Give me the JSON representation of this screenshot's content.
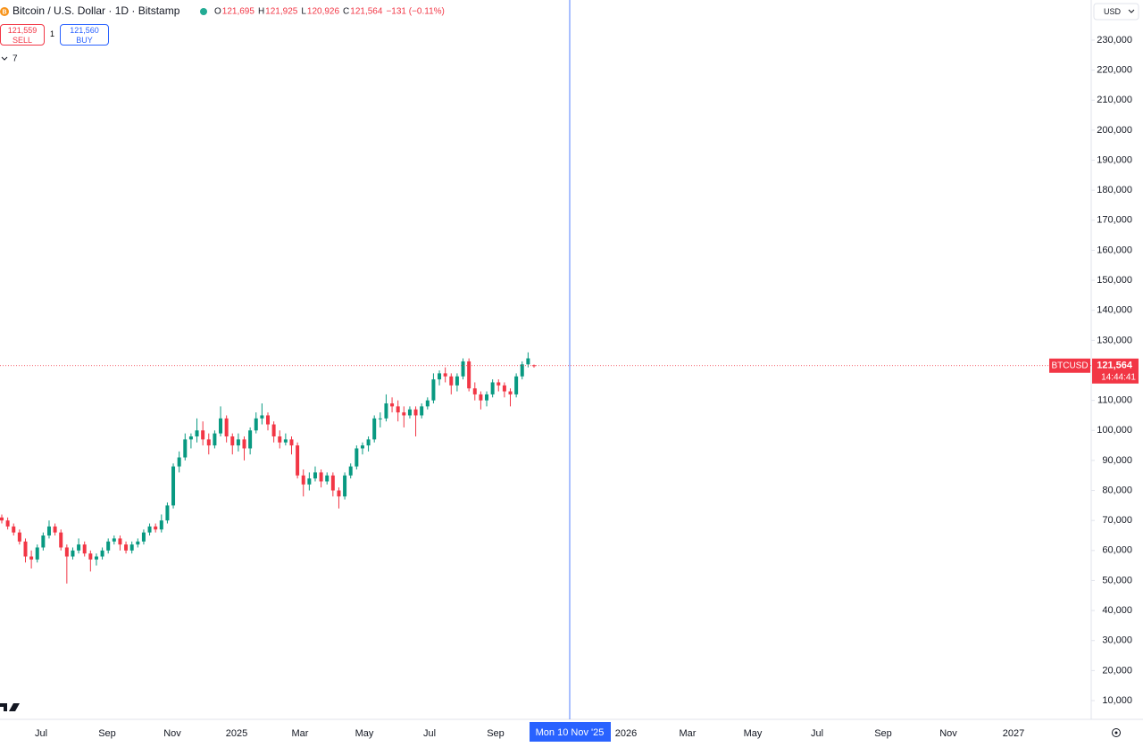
{
  "header": {
    "symbol": "Bitcoin / U.S. Dollar · 1D · Bitstamp",
    "ohlc": [
      {
        "key": "O",
        "value": "121,695"
      },
      {
        "key": "H",
        "value": "121,925"
      },
      {
        "key": "L",
        "value": "120,926"
      },
      {
        "key": "C",
        "value": "121,564"
      }
    ],
    "change": "−131 (−0.11%)"
  },
  "trade": {
    "sell_price": "121,559",
    "sell": "SELL",
    "spread": "1",
    "buy_price": "121,560",
    "buy": "BUY"
  },
  "indicators_toggle": "7",
  "currency": "USD",
  "crosshair_date": "Mon 10 Nov '25",
  "chart_data": {
    "type": "candlestick",
    "up_color": "#089981",
    "down_color": "#f23645",
    "ylim": [
      0,
      240000
    ],
    "yticks": [
      {
        "value": 10000,
        "label": "10,000"
      },
      {
        "value": 20000,
        "label": "20,000"
      },
      {
        "value": 30000,
        "label": "30,000"
      },
      {
        "value": 40000,
        "label": "40,000"
      },
      {
        "value": 50000,
        "label": "50,000"
      },
      {
        "value": 60000,
        "label": "60,000"
      },
      {
        "value": 70000,
        "label": "70,000"
      },
      {
        "value": 80000,
        "label": "80,000"
      },
      {
        "value": 90000,
        "label": "90,000"
      },
      {
        "value": 100000,
        "label": "100,000"
      },
      {
        "value": 110000,
        "label": "110,000"
      },
      {
        "value": 120000,
        "label": "120,000"
      },
      {
        "value": 130000,
        "label": "130,000"
      },
      {
        "value": 140000,
        "label": "140,000"
      },
      {
        "value": 150000,
        "label": "150,000"
      },
      {
        "value": 160000,
        "label": "160,000"
      },
      {
        "value": 170000,
        "label": "170,000"
      },
      {
        "value": 180000,
        "label": "180,000"
      },
      {
        "value": 190000,
        "label": "190,000"
      },
      {
        "value": 200000,
        "label": "200,000"
      },
      {
        "value": 210000,
        "label": "210,000"
      },
      {
        "value": 220000,
        "label": "220,000"
      },
      {
        "value": 230000,
        "label": "230,000"
      }
    ],
    "xticks": [
      "Jul",
      "Sep",
      "Nov",
      "2025",
      "Mar",
      "May",
      "Jul",
      "Sep",
      "2026",
      "Mar",
      "May",
      "Jul",
      "Sep",
      "Nov",
      "2027"
    ],
    "symbol_label": "BTCUSD",
    "last_price": 121564,
    "last_price_label": "121,564",
    "countdown": "14:44:41",
    "open": [
      71000,
      70000,
      68000,
      66000,
      63000,
      58000,
      57000,
      61000,
      65000,
      68000,
      66000,
      61000,
      58000,
      60000,
      62000,
      59000,
      57000,
      58000,
      60000,
      63000,
      64000,
      62000,
      60000,
      62000,
      63000,
      66000,
      68000,
      67000,
      70000,
      75000,
      88000,
      91000,
      97000,
      98000,
      100000,
      97000,
      95000,
      99000,
      104000,
      98000,
      95000,
      97000,
      94000,
      100000,
      104000,
      105000,
      102000,
      98000,
      96000,
      97000,
      95000,
      85000,
      82000,
      84000,
      86000,
      83000,
      85000,
      80000,
      78000,
      85000,
      88000,
      94000,
      95000,
      97000,
      104000,
      104000,
      109000,
      108000,
      106000,
      105000,
      107000,
      105000,
      108000,
      110000,
      117000,
      119000,
      118000,
      115000,
      118000,
      123000,
      114000,
      112000,
      110000,
      112000,
      116000,
      115000,
      113000,
      112000,
      118000,
      122000,
      121695
    ],
    "high": [
      72000,
      71000,
      69000,
      67000,
      64000,
      60000,
      62000,
      66000,
      70000,
      69000,
      67000,
      62000,
      61000,
      64000,
      63000,
      60000,
      59000,
      61000,
      64000,
      65000,
      65000,
      63000,
      63000,
      64000,
      67000,
      69000,
      69000,
      72000,
      76000,
      89000,
      93000,
      99000,
      99000,
      104000,
      103000,
      99000,
      100000,
      108000,
      105000,
      99000,
      99000,
      98000,
      101000,
      106000,
      109000,
      106000,
      103000,
      100000,
      99000,
      98000,
      96000,
      87000,
      86000,
      88000,
      87000,
      86000,
      86000,
      81000,
      86000,
      89000,
      95000,
      96000,
      98000,
      105000,
      106000,
      112000,
      111000,
      110000,
      108000,
      108000,
      108000,
      109000,
      111000,
      119000,
      120000,
      121000,
      119000,
      119000,
      124000,
      124000,
      116000,
      113000,
      113000,
      117000,
      117000,
      116000,
      114000,
      119000,
      123000,
      126000,
      121925
    ],
    "low": [
      69000,
      67000,
      65000,
      62000,
      56000,
      54000,
      56000,
      60000,
      64000,
      65000,
      60000,
      49000,
      57000,
      59000,
      58000,
      53000,
      55000,
      57000,
      59000,
      62000,
      60000,
      59000,
      59000,
      61000,
      62000,
      65000,
      66000,
      66000,
      69000,
      74000,
      86000,
      90000,
      94000,
      96000,
      95000,
      92000,
      94000,
      98000,
      96000,
      92000,
      93000,
      90000,
      92000,
      99000,
      102000,
      100000,
      96000,
      94000,
      95000,
      92000,
      84000,
      78000,
      80000,
      83000,
      81000,
      82000,
      78000,
      74000,
      77000,
      84000,
      87000,
      92000,
      93000,
      96000,
      101000,
      103000,
      106000,
      103000,
      101000,
      104000,
      98000,
      104000,
      107000,
      109000,
      115000,
      116000,
      112000,
      113000,
      117000,
      113000,
      110000,
      107000,
      108000,
      111000,
      113000,
      111000,
      108000,
      111000,
      117000,
      121000,
      120926
    ],
    "close": [
      70000,
      68000,
      66000,
      63000,
      58000,
      57000,
      61000,
      65000,
      68000,
      66000,
      61000,
      58000,
      60000,
      62000,
      59000,
      57000,
      58000,
      60000,
      63000,
      64000,
      62000,
      60000,
      62000,
      63000,
      66000,
      68000,
      67000,
      70000,
      75000,
      88000,
      91000,
      97000,
      98000,
      100000,
      97000,
      95000,
      99000,
      104000,
      98000,
      95000,
      97000,
      94000,
      100000,
      104000,
      105000,
      102000,
      98000,
      96000,
      97000,
      95000,
      85000,
      82000,
      84000,
      86000,
      83000,
      85000,
      80000,
      78000,
      85000,
      88000,
      94000,
      95000,
      97000,
      104000,
      104000,
      109000,
      108000,
      106000,
      105000,
      107000,
      105000,
      108000,
      110000,
      117000,
      119000,
      118000,
      115000,
      118000,
      123000,
      114000,
      112000,
      110000,
      112000,
      116000,
      115000,
      113000,
      112000,
      118000,
      122000,
      124000,
      121564
    ]
  }
}
